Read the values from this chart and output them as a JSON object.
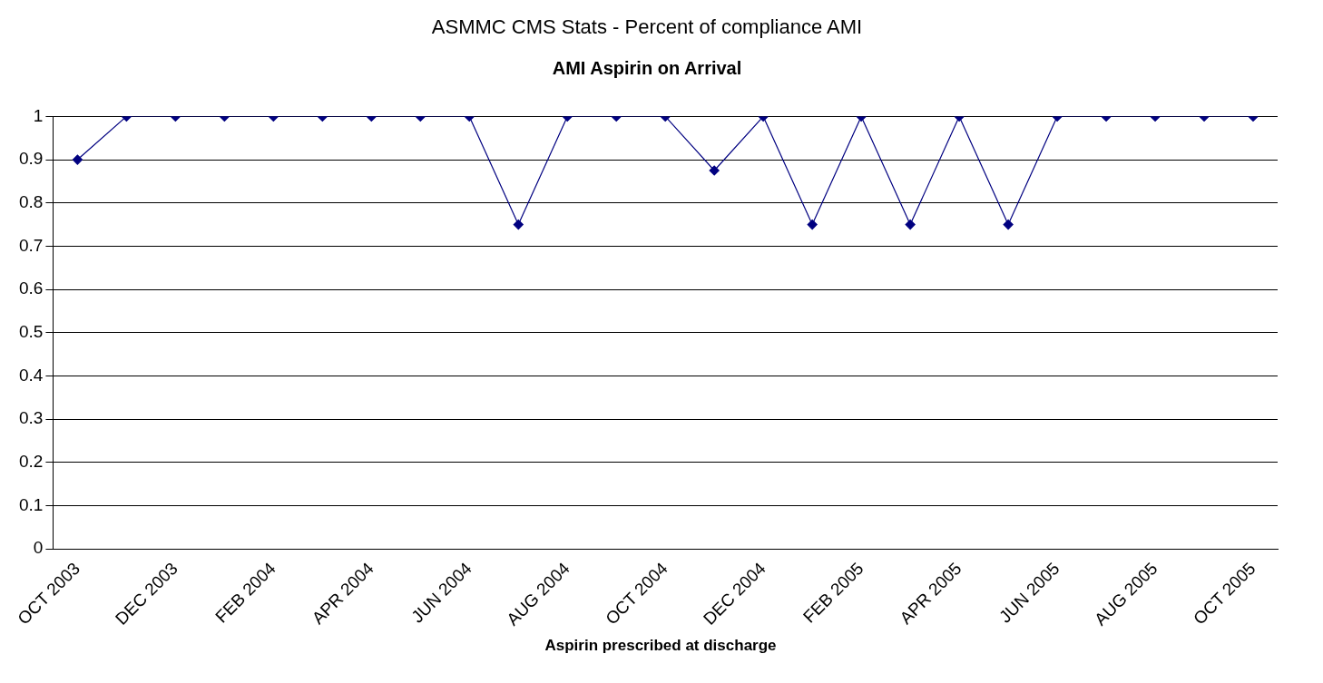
{
  "chart_data": {
    "type": "line",
    "title": "ASMMC CMS Stats - Percent of compliance AMI",
    "subtitle": "AMI Aspirin on Arrival",
    "categories": [
      "OCT 2003",
      null,
      "DEC 2003",
      null,
      "FEB 2004",
      null,
      "APR 2004",
      null,
      "JUN 2004",
      null,
      "AUG 2004",
      null,
      "OCT 2004",
      null,
      "DEC 2004",
      null,
      "FEB 2005",
      null,
      "APR 2005",
      null,
      "JUN 2005",
      null,
      "AUG 2005",
      null,
      "OCT 2005"
    ],
    "series": [
      {
        "color": "#000080",
        "values": [
          0.9,
          1,
          1,
          1,
          1,
          1,
          1,
          1,
          1,
          0.75,
          1,
          1,
          1,
          0.875,
          1,
          0.75,
          1,
          0.75,
          1,
          0.75,
          1,
          1,
          1,
          1,
          1
        ]
      }
    ],
    "ylim": [
      0,
      1
    ],
    "yticks": [
      0,
      0.1,
      0.2,
      0.3,
      0.4,
      0.5,
      0.6,
      0.7,
      0.8,
      0.9,
      1
    ],
    "grid": "y",
    "legend": false,
    "marker": "diamond",
    "line_style": "solid",
    "annotations": [
      "Aspirin prescribed at discharge"
    ]
  }
}
